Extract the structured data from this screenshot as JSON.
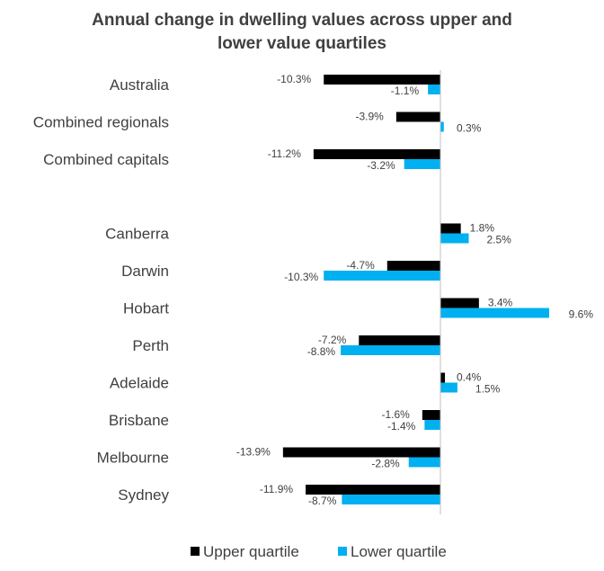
{
  "chart_data": {
    "type": "bar",
    "orientation": "horizontal",
    "title_lines": [
      "Annual change in dwelling values across upper and",
      "lower value quartiles"
    ],
    "groups": [
      [
        "Australia",
        "Combined regionals",
        "Combined capitals"
      ],
      [
        "Canberra",
        "Darwin",
        "Hobart",
        "Perth",
        "Adelaide",
        "Brisbane",
        "Melbourne",
        "Sydney"
      ]
    ],
    "categories": [
      "Australia",
      "Combined regionals",
      "Combined capitals",
      "Canberra",
      "Darwin",
      "Hobart",
      "Perth",
      "Adelaide",
      "Brisbane",
      "Melbourne",
      "Sydney"
    ],
    "series": [
      {
        "name": "Upper quartile",
        "color": "#000000",
        "values": [
          -10.3,
          -3.9,
          -11.2,
          1.8,
          -4.7,
          3.4,
          -7.2,
          0.4,
          -1.6,
          -13.9,
          -11.9
        ],
        "labels": [
          "-10.3%",
          "-3.9%",
          "-11.2%",
          "1.8%",
          "-4.7%",
          "3.4%",
          "-7.2%",
          "0.4%",
          "-1.6%",
          "-13.9%",
          "-11.9%"
        ]
      },
      {
        "name": "Lower quartile",
        "color": "#00B0F0",
        "values": [
          -1.1,
          0.3,
          -3.2,
          2.5,
          -10.3,
          9.6,
          -8.8,
          1.5,
          -1.4,
          -2.8,
          -8.7
        ],
        "labels": [
          "-1.1%",
          "0.3%",
          "-3.2%",
          "2.5%",
          "-10.3%",
          "9.6%",
          "-8.8%",
          "1.5%",
          "-1.4%",
          "-2.8%",
          "-8.7%"
        ]
      }
    ],
    "xlim": [
      -14.5,
      10
    ],
    "legend_position": "bottom",
    "axis_color": "#BFBFBF"
  }
}
